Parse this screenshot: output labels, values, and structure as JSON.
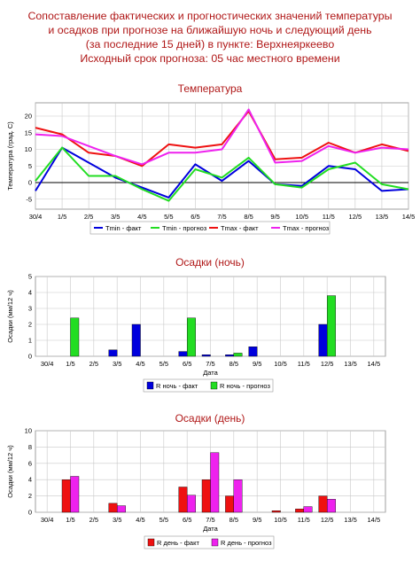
{
  "header": {
    "line1": "Сопоставление фактических и прогностических значений температуры",
    "line2": "и осадков при прогнозе на ближайшую ночь и следующий день",
    "line3": "(за последние 15 дней) в пункте:  Верхнеяркеево",
    "line4": "Исходный срок прогноза: 05 час местного времени"
  },
  "colors": {
    "title": "#b01818",
    "tmin_fact": "#0000dd",
    "tmin_forecast": "#22dd22",
    "tmax_fact": "#ee1111",
    "tmax_forecast": "#ee22ee",
    "night_fact": "#0000dd",
    "night_forecast": "#22dd22",
    "day_fact": "#ee1111",
    "day_forecast": "#ee22ee"
  },
  "chart_data": [
    {
      "type": "line",
      "title": "Температура",
      "xlabel": "Дата",
      "ylabel": "Температура (град. С)",
      "categories": [
        "30/4",
        "1/5",
        "2/5",
        "3/5",
        "4/5",
        "5/5",
        "6/5",
        "7/5",
        "8/5",
        "9/5",
        "10/5",
        "11/5",
        "12/5",
        "13/5",
        "14/5"
      ],
      "ylim": [
        -8,
        24
      ],
      "yticks": [
        -5,
        0,
        5,
        10,
        15,
        20
      ],
      "grid": true,
      "legend_position": "bottom",
      "series": [
        {
          "name": "Tmin - факт",
          "color": "#0000dd",
          "values": [
            -2.5,
            10.5,
            6,
            1.5,
            -1.5,
            -4.5,
            5.5,
            0.5,
            6.5,
            -0.5,
            -1,
            5,
            4,
            -2.5,
            -2
          ]
        },
        {
          "name": "Tmin - прогноз",
          "color": "#22dd22",
          "values": [
            0.5,
            10.5,
            2,
            2,
            -2,
            -5.5,
            4,
            1.5,
            7.5,
            -0.5,
            -1.5,
            4,
            6,
            -0.5,
            -2
          ]
        },
        {
          "name": "Tmax - факт",
          "color": "#ee1111",
          "values": [
            16.5,
            14.5,
            9,
            8,
            5,
            11.5,
            10.5,
            11.5,
            21.5,
            7,
            7.5,
            12,
            9,
            11.5,
            9.5
          ]
        },
        {
          "name": "Tmax - прогноз",
          "color": "#ee22ee",
          "values": [
            14.5,
            14,
            11,
            8,
            5.5,
            9,
            9,
            10,
            22,
            6,
            6.5,
            11,
            9,
            10.5,
            10
          ]
        }
      ]
    },
    {
      "type": "bar",
      "title": "Осадки (ночь)",
      "xlabel": "Дата",
      "ylabel": "Осадки (мм/12 ч)",
      "categories": [
        "30/4",
        "1/5",
        "2/5",
        "3/5",
        "4/5",
        "5/5",
        "6/5",
        "7/5",
        "8/5",
        "9/5",
        "10/5",
        "11/5",
        "12/5",
        "13/5",
        "14/5"
      ],
      "ylim": [
        0,
        5
      ],
      "yticks": [
        0,
        1,
        2,
        3,
        4,
        5
      ],
      "grid": true,
      "legend_position": "bottom",
      "series": [
        {
          "name": "R ночь - факт",
          "color": "#0000dd",
          "values": [
            0,
            0,
            0,
            0.4,
            2,
            0,
            0.3,
            0.1,
            0.1,
            0.6,
            0,
            0,
            2,
            0,
            0
          ]
        },
        {
          "name": "R ночь - прогноз",
          "color": "#22dd22",
          "values": [
            0,
            2.4,
            0,
            0,
            0,
            0,
            2.4,
            0,
            0.2,
            0,
            0,
            0,
            3.8,
            0,
            0
          ]
        }
      ]
    },
    {
      "type": "bar",
      "title": "Осадки (день)",
      "xlabel": "Дата",
      "ylabel": "Осадки (мм/12 ч)",
      "categories": [
        "30/4",
        "1/5",
        "2/5",
        "3/5",
        "4/5",
        "5/5",
        "6/5",
        "7/5",
        "8/5",
        "9/5",
        "10/5",
        "11/5",
        "12/5",
        "13/5",
        "14/5"
      ],
      "ylim": [
        0,
        10
      ],
      "yticks": [
        0,
        2,
        4,
        6,
        8,
        10
      ],
      "grid": true,
      "legend_position": "bottom",
      "series": [
        {
          "name": "R день - факт",
          "color": "#ee1111",
          "values": [
            0,
            4,
            0,
            1.1,
            0,
            0,
            3.1,
            4,
            2,
            0,
            0.2,
            0.4,
            2,
            0,
            0
          ]
        },
        {
          "name": "R день - прогноз",
          "color": "#ee22ee",
          "values": [
            0,
            4.4,
            0,
            0.8,
            0,
            0,
            2.1,
            7.3,
            4,
            0,
            0,
            0.7,
            1.6,
            0,
            0
          ]
        }
      ]
    }
  ]
}
